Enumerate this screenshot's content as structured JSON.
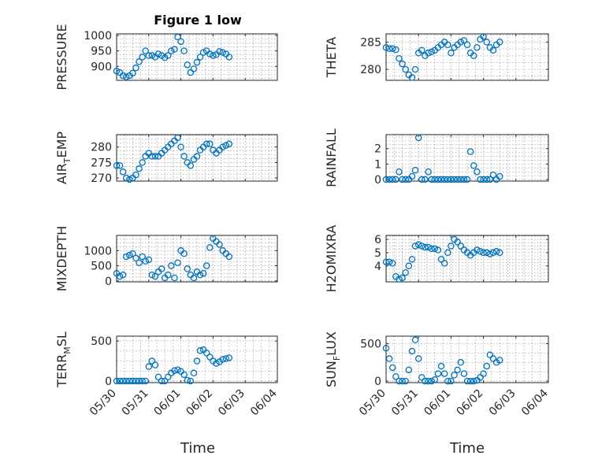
{
  "figure": {
    "title": "Figure 1 low",
    "xlabel": "Time"
  },
  "chart_data": [
    {
      "type": "scatter",
      "title": "Figure 1 low",
      "xlabel": "",
      "ylabel": "PRESSURE",
      "xticks": [
        "05/30",
        "05/31",
        "06/01",
        "06/02",
        "06/03",
        "06/04"
      ],
      "xlim": [
        0,
        5
      ],
      "ylim": [
        855,
        1005
      ],
      "yticks": [
        900,
        950,
        1000
      ],
      "yticklabels": [
        "900",
        "950",
        "1000"
      ],
      "grid": true,
      "color": "#0072bd",
      "x": [
        0.0,
        0.1,
        0.2,
        0.3,
        0.4,
        0.5,
        0.6,
        0.7,
        0.8,
        0.9,
        1.0,
        1.1,
        1.2,
        1.3,
        1.4,
        1.5,
        1.6,
        1.7,
        1.8,
        1.9,
        2.0,
        2.1,
        2.2,
        2.3,
        2.4,
        2.5,
        2.6,
        2.7,
        2.8,
        2.9,
        3.0,
        3.1,
        3.2,
        3.3,
        3.4,
        3.5
      ],
      "y": [
        885,
        880,
        870,
        866,
        870,
        878,
        895,
        915,
        930,
        950,
        935,
        935,
        930,
        940,
        935,
        928,
        935,
        950,
        955,
        995,
        980,
        950,
        905,
        880,
        892,
        913,
        930,
        945,
        950,
        940,
        935,
        938,
        948,
        945,
        940,
        930
      ]
    },
    {
      "type": "scatter",
      "xlabel": "",
      "ylabel": "THETA",
      "xticks": [
        "05/30",
        "05/31",
        "06/01",
        "06/02",
        "06/03",
        "06/04"
      ],
      "xlim": [
        0,
        5
      ],
      "ylim": [
        278,
        286.5
      ],
      "yticks": [
        280,
        285
      ],
      "yticklabels": [
        "280",
        "285"
      ],
      "grid": true,
      "color": "#0072bd",
      "x": [
        0.0,
        0.1,
        0.2,
        0.3,
        0.4,
        0.5,
        0.6,
        0.7,
        0.8,
        0.9,
        1.0,
        1.1,
        1.2,
        1.3,
        1.4,
        1.5,
        1.6,
        1.7,
        1.8,
        1.9,
        2.0,
        2.1,
        2.2,
        2.3,
        2.4,
        2.5,
        2.6,
        2.7,
        2.8,
        2.9,
        3.0,
        3.1,
        3.2,
        3.3,
        3.4,
        3.5
      ],
      "y": [
        284,
        283.8,
        283.8,
        283.6,
        282,
        281,
        280,
        279,
        278.5,
        280,
        283,
        283.5,
        282.5,
        283,
        283.2,
        283.5,
        284,
        284.5,
        285,
        284.5,
        283,
        284,
        284.5,
        285,
        285.3,
        284.5,
        283,
        282.5,
        284,
        285.5,
        286,
        285,
        284,
        283.5,
        284.5,
        285
      ]
    },
    {
      "type": "scatter",
      "xlabel": "",
      "ylabel": "AIR_TEMP",
      "ylabel_main_before": "AIR",
      "ylabel_sub": "T",
      "ylabel_main_after": "EMP",
      "xticks": [
        "05/30",
        "05/31",
        "06/01",
        "06/02",
        "06/03",
        "06/04"
      ],
      "xlim": [
        0,
        5
      ],
      "ylim": [
        269,
        284
      ],
      "yticks": [
        270,
        275,
        280
      ],
      "yticklabels": [
        "270",
        "275",
        "280"
      ],
      "grid": true,
      "color": "#0072bd",
      "x": [
        0.0,
        0.1,
        0.2,
        0.3,
        0.4,
        0.5,
        0.6,
        0.7,
        0.8,
        0.9,
        1.0,
        1.1,
        1.2,
        1.3,
        1.4,
        1.5,
        1.6,
        1.7,
        1.8,
        1.9,
        2.0,
        2.1,
        2.2,
        2.3,
        2.4,
        2.5,
        2.6,
        2.7,
        2.8,
        2.9,
        3.0,
        3.1,
        3.2,
        3.3,
        3.4,
        3.5
      ],
      "y": [
        274,
        274,
        272,
        270,
        269.5,
        270,
        271,
        273,
        275,
        277,
        278,
        277,
        277,
        277,
        278,
        279,
        280,
        281,
        282,
        283,
        280,
        277,
        275,
        274,
        276,
        277,
        279,
        280,
        281,
        281,
        279,
        278,
        279,
        280,
        280.5,
        281
      ]
    },
    {
      "type": "scatter",
      "xlabel": "",
      "ylabel": "RAINFALL",
      "xticks": [
        "05/30",
        "05/31",
        "06/01",
        "06/02",
        "06/03",
        "06/04"
      ],
      "xlim": [
        0,
        5
      ],
      "ylim": [
        -0.1,
        2.9
      ],
      "yticks": [
        0,
        1,
        2
      ],
      "yticklabels": [
        "0",
        "1",
        "2"
      ],
      "grid": true,
      "color": "#0072bd",
      "x": [
        0.0,
        0.1,
        0.2,
        0.3,
        0.4,
        0.5,
        0.6,
        0.7,
        0.8,
        0.9,
        1.0,
        1.1,
        1.2,
        1.3,
        1.4,
        1.5,
        1.6,
        1.7,
        1.8,
        1.9,
        2.0,
        2.1,
        2.2,
        2.3,
        2.4,
        2.5,
        2.6,
        2.7,
        2.8,
        2.9,
        3.0,
        3.1,
        3.2,
        3.3,
        3.4,
        3.5
      ],
      "y": [
        0,
        0,
        0,
        0,
        0.5,
        0,
        0,
        0,
        0.2,
        0.6,
        2.7,
        0,
        0,
        0.5,
        0,
        0,
        0,
        0,
        0,
        0,
        0,
        0,
        0,
        0,
        0,
        0,
        1.8,
        0.9,
        0.5,
        0,
        0,
        0,
        0,
        0.3,
        0,
        0.2
      ]
    },
    {
      "type": "scatter",
      "xlabel": "",
      "ylabel": "MIXDEPTH",
      "xticks": [
        "05/30",
        "05/31",
        "06/01",
        "06/02",
        "06/03",
        "06/04"
      ],
      "xlim": [
        0,
        5
      ],
      "ylim": [
        -30,
        1500
      ],
      "yticks": [
        0,
        500,
        1000
      ],
      "yticklabels": [
        "0",
        "500",
        "1000"
      ],
      "grid": true,
      "color": "#0072bd",
      "x": [
        0.0,
        0.1,
        0.2,
        0.3,
        0.4,
        0.5,
        0.6,
        0.7,
        0.8,
        0.9,
        1.0,
        1.1,
        1.2,
        1.3,
        1.4,
        1.5,
        1.6,
        1.7,
        1.8,
        1.9,
        2.0,
        2.1,
        2.2,
        2.3,
        2.4,
        2.5,
        2.6,
        2.7,
        2.8,
        2.9,
        3.0,
        3.1,
        3.2,
        3.3,
        3.4,
        3.5
      ],
      "y": [
        250,
        150,
        200,
        800,
        850,
        900,
        750,
        600,
        800,
        650,
        700,
        200,
        150,
        300,
        400,
        100,
        200,
        500,
        100,
        600,
        1000,
        900,
        400,
        200,
        100,
        300,
        200,
        250,
        500,
        1100,
        1400,
        1300,
        1200,
        1000,
        900,
        800
      ]
    },
    {
      "type": "scatter",
      "xlabel": "",
      "ylabel": "H2OMIXRA",
      "xticks": [
        "05/30",
        "05/31",
        "06/01",
        "06/02",
        "06/03",
        "06/04"
      ],
      "xlim": [
        0,
        5
      ],
      "ylim": [
        2.8,
        6.3
      ],
      "yticks": [
        4,
        5,
        6
      ],
      "yticklabels": [
        "4",
        "5",
        "6"
      ],
      "grid": true,
      "color": "#0072bd",
      "x": [
        0.0,
        0.1,
        0.2,
        0.3,
        0.4,
        0.5,
        0.6,
        0.7,
        0.8,
        0.9,
        1.0,
        1.1,
        1.2,
        1.3,
        1.4,
        1.5,
        1.6,
        1.7,
        1.8,
        1.9,
        2.0,
        2.1,
        2.2,
        2.3,
        2.4,
        2.5,
        2.6,
        2.7,
        2.8,
        2.9,
        3.0,
        3.1,
        3.2,
        3.3,
        3.4,
        3.5
      ],
      "y": [
        4.3,
        4.3,
        4.2,
        3.2,
        3.0,
        3.1,
        3.5,
        4.0,
        4.5,
        5.5,
        5.6,
        5.5,
        5.4,
        5.4,
        5.3,
        5.3,
        5.2,
        4.5,
        4.2,
        5.0,
        5.5,
        6.0,
        5.8,
        5.5,
        5.2,
        5.0,
        4.8,
        5.0,
        5.2,
        5.1,
        5.0,
        5.0,
        4.9,
        5.0,
        5.1,
        5.0
      ]
    },
    {
      "type": "scatter",
      "xlabel": "Time",
      "ylabel": "TERR_MSL",
      "ylabel_main_before": "TERR",
      "ylabel_sub": "M",
      "ylabel_main_after": "SL",
      "xticks": [
        "05/30",
        "05/31",
        "06/01",
        "06/02",
        "06/03",
        "06/04"
      ],
      "xlim": [
        0,
        5
      ],
      "ylim": [
        -20,
        560
      ],
      "yticks": [
        0,
        500
      ],
      "yticklabels": [
        "0",
        "500"
      ],
      "grid": true,
      "color": "#0072bd",
      "x": [
        0.0,
        0.1,
        0.2,
        0.3,
        0.4,
        0.5,
        0.6,
        0.7,
        0.8,
        0.9,
        1.0,
        1.1,
        1.2,
        1.3,
        1.4,
        1.5,
        1.6,
        1.7,
        1.8,
        1.9,
        2.0,
        2.1,
        2.2,
        2.3,
        2.4,
        2.5,
        2.6,
        2.7,
        2.8,
        2.9,
        3.0,
        3.1,
        3.2,
        3.3,
        3.4,
        3.5
      ],
      "y": [
        0,
        0,
        0,
        0,
        0,
        0,
        0,
        0,
        0,
        0,
        180,
        250,
        200,
        50,
        0,
        0,
        50,
        100,
        130,
        140,
        120,
        80,
        10,
        0,
        100,
        250,
        380,
        390,
        350,
        300,
        250,
        220,
        240,
        270,
        280,
        290
      ]
    },
    {
      "type": "scatter",
      "xlabel": "Time",
      "ylabel": "SUN_FLUX",
      "ylabel_main_before": "SUN",
      "ylabel_sub": "F",
      "ylabel_main_after": "LUX",
      "xticks": [
        "05/30",
        "05/31",
        "06/01",
        "06/02",
        "06/03",
        "06/04"
      ],
      "xlim": [
        0,
        5
      ],
      "ylim": [
        -20,
        600
      ],
      "yticks": [
        0,
        500
      ],
      "yticklabels": [
        "0",
        "500"
      ],
      "grid": true,
      "color": "#0072bd",
      "x": [
        0.0,
        0.1,
        0.2,
        0.3,
        0.4,
        0.5,
        0.6,
        0.7,
        0.8,
        0.9,
        1.0,
        1.1,
        1.2,
        1.3,
        1.4,
        1.5,
        1.6,
        1.7,
        1.8,
        1.9,
        2.0,
        2.1,
        2.2,
        2.3,
        2.4,
        2.5,
        2.6,
        2.7,
        2.8,
        2.9,
        3.0,
        3.1,
        3.2,
        3.3,
        3.4,
        3.5
      ],
      "y": [
        440,
        300,
        180,
        60,
        0,
        0,
        0,
        150,
        400,
        550,
        300,
        50,
        0,
        0,
        0,
        20,
        100,
        200,
        100,
        0,
        0,
        80,
        150,
        250,
        100,
        0,
        0,
        0,
        10,
        50,
        100,
        200,
        350,
        300,
        250,
        280
      ]
    }
  ]
}
